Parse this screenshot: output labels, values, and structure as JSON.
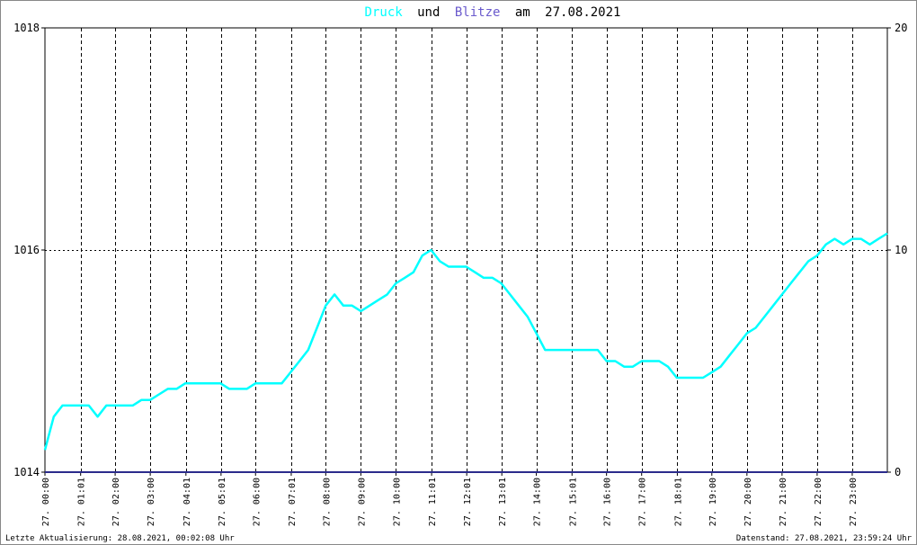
{
  "title": {
    "series1": "Druck",
    "connector": "und",
    "series2": "Blitze",
    "date_prefix": "am",
    "date": "27.08.2021",
    "series1_color": "#00ffff",
    "series2_color": "#6a5acd",
    "text_color": "#000000"
  },
  "footer": {
    "left": "Letzte Aktualisierung: 28.08.2021, 00:02:08 Uhr",
    "right": "Datenstand: 27.08.2021, 23:59:24 Uhr"
  },
  "chart_data": {
    "type": "line",
    "x_tick_labels": [
      "27. 00:00",
      "27. 01:01",
      "27. 02:00",
      "27. 03:00",
      "27. 04:01",
      "27. 05:01",
      "27. 06:00",
      "27. 07:01",
      "27. 08:00",
      "27. 09:00",
      "27. 10:00",
      "27. 11:01",
      "27. 12:01",
      "27. 13:01",
      "27. 14:00",
      "27. 15:01",
      "27. 16:00",
      "27. 17:00",
      "27. 18:01",
      "27. 19:00",
      "27. 20:00",
      "27. 21:00",
      "27. 22:00",
      "27. 23:00"
    ],
    "x_tick_hours": [
      0,
      1.0167,
      2,
      3,
      4.0167,
      5.0167,
      6,
      7.0167,
      8,
      9,
      10,
      11.0167,
      12.0167,
      13.0167,
      14,
      15.0167,
      16,
      17,
      18.0167,
      19,
      20,
      21,
      22,
      23
    ],
    "xlim": [
      0,
      24
    ],
    "y_left": {
      "ylim": [
        1014,
        1018
      ],
      "tick_values": [
        1014,
        1016,
        1018
      ],
      "tick_labels": [
        "1014",
        "1016",
        "1018"
      ]
    },
    "y_right": {
      "ylim": [
        0,
        20
      ],
      "tick_values": [
        0,
        10,
        20
      ],
      "tick_labels": [
        "0",
        "10",
        "20"
      ]
    },
    "grid": true,
    "series": [
      {
        "name": "Druck",
        "color": "#00ffff",
        "axis": "left",
        "x": [
          0,
          0.25,
          0.5,
          0.75,
          1,
          1.25,
          1.5,
          1.75,
          2,
          2.25,
          2.5,
          2.75,
          3,
          3.25,
          3.5,
          3.75,
          4,
          4.25,
          4.5,
          4.75,
          5,
          5.25,
          5.5,
          5.75,
          6,
          6.25,
          6.5,
          6.75,
          7,
          7.25,
          7.5,
          7.75,
          8,
          8.25,
          8.5,
          8.75,
          9,
          9.25,
          9.5,
          9.75,
          10,
          10.25,
          10.5,
          10.75,
          11,
          11.25,
          11.5,
          11.75,
          12,
          12.25,
          12.5,
          12.75,
          13,
          13.25,
          13.5,
          13.75,
          14,
          14.25,
          14.5,
          14.75,
          15,
          15.25,
          15.5,
          15.75,
          16,
          16.25,
          16.5,
          16.75,
          17,
          17.25,
          17.5,
          17.75,
          18,
          18.25,
          18.5,
          18.75,
          19,
          19.25,
          19.5,
          19.75,
          20,
          20.25,
          20.5,
          20.75,
          21,
          21.25,
          21.5,
          21.75,
          22,
          22.25,
          22.5,
          22.75,
          23,
          23.25,
          23.5,
          23.75,
          24
        ],
        "y": [
          1014.2,
          1014.5,
          1014.6,
          1014.6,
          1014.6,
          1014.6,
          1014.5,
          1014.6,
          1014.6,
          1014.6,
          1014.6,
          1014.65,
          1014.65,
          1014.7,
          1014.75,
          1014.75,
          1014.8,
          1014.8,
          1014.8,
          1014.8,
          1014.8,
          1014.75,
          1014.75,
          1014.75,
          1014.8,
          1014.8,
          1014.8,
          1014.8,
          1014.9,
          1015.0,
          1015.1,
          1015.3,
          1015.5,
          1015.6,
          1015.5,
          1015.5,
          1015.45,
          1015.5,
          1015.55,
          1015.6,
          1015.7,
          1015.75,
          1015.8,
          1015.95,
          1016.0,
          1015.9,
          1015.85,
          1015.85,
          1015.85,
          1015.8,
          1015.75,
          1015.75,
          1015.7,
          1015.6,
          1015.5,
          1015.4,
          1015.25,
          1015.1,
          1015.1,
          1015.1,
          1015.1,
          1015.1,
          1015.1,
          1015.1,
          1015.0,
          1015.0,
          1014.95,
          1014.95,
          1015.0,
          1015.0,
          1015.0,
          1014.95,
          1014.85,
          1014.85,
          1014.85,
          1014.85,
          1014.9,
          1014.95,
          1015.05,
          1015.15,
          1015.25,
          1015.3,
          1015.4,
          1015.5,
          1015.6,
          1015.7,
          1015.8,
          1015.9,
          1015.95,
          1016.05,
          1016.1,
          1016.05,
          1016.1,
          1016.1,
          1016.05,
          1016.1,
          1016.15
        ]
      },
      {
        "name": "Blitze",
        "color": "#2b2b8c",
        "axis": "right",
        "x": [
          0,
          24
        ],
        "y": [
          0,
          0
        ]
      }
    ]
  }
}
